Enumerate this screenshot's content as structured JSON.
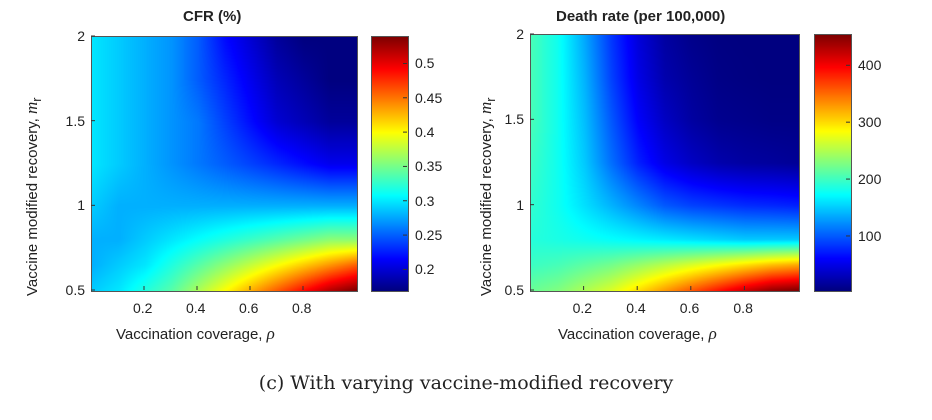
{
  "caption": "(c) With varying vaccine-modified recovery",
  "chart_data": [
    {
      "type": "heatmap",
      "title": "CFR (%)",
      "xlabel": "Vaccination coverage,",
      "xlabel_symbol": "ρ",
      "ylabel": "Vaccine modified recovery,",
      "ylabel_symbol": "m",
      "ylabel_subscript": "r",
      "xlim": [
        0,
        1
      ],
      "ylim": [
        0.5,
        2
      ],
      "xticks": [
        "0.2",
        "0.4",
        "0.6",
        "0.8"
      ],
      "xtick_values": [
        0.2,
        0.4,
        0.6,
        0.8
      ],
      "yticks": [
        "0.5",
        "1",
        "1.5",
        "2"
      ],
      "ytick_values": [
        0.5,
        1,
        1.5,
        2
      ],
      "colorbar_range": [
        0.17,
        0.54
      ],
      "colorbar_ticks": [
        "0.2",
        "0.25",
        "0.3",
        "0.35",
        "0.4",
        "0.45",
        "0.5"
      ],
      "colorbar_tick_values": [
        0.2,
        0.25,
        0.3,
        0.35,
        0.4,
        0.45,
        0.5
      ],
      "colormap": "jet",
      "x": [
        0.0,
        0.1,
        0.2,
        0.3,
        0.4,
        0.5,
        0.6,
        0.7,
        0.8,
        0.9,
        1.0
      ],
      "y": [
        0.5,
        0.65,
        0.8,
        1.0,
        1.25,
        1.5,
        1.75,
        2.0
      ],
      "z": [
        [
          0.29,
          0.3,
          0.32,
          0.34,
          0.37,
          0.4,
          0.43,
          0.46,
          0.49,
          0.52,
          0.54
        ],
        [
          0.28,
          0.29,
          0.3,
          0.32,
          0.34,
          0.36,
          0.38,
          0.4,
          0.42,
          0.44,
          0.46
        ],
        [
          0.28,
          0.28,
          0.29,
          0.3,
          0.31,
          0.32,
          0.33,
          0.34,
          0.35,
          0.36,
          0.36
        ],
        [
          0.29,
          0.28,
          0.28,
          0.28,
          0.28,
          0.28,
          0.28,
          0.28,
          0.28,
          0.28,
          0.28
        ],
        [
          0.3,
          0.29,
          0.28,
          0.27,
          0.26,
          0.25,
          0.24,
          0.23,
          0.22,
          0.21,
          0.21
        ],
        [
          0.3,
          0.29,
          0.28,
          0.27,
          0.26,
          0.24,
          0.22,
          0.2,
          0.19,
          0.18,
          0.18
        ],
        [
          0.3,
          0.29,
          0.28,
          0.27,
          0.25,
          0.23,
          0.21,
          0.19,
          0.18,
          0.17,
          0.17
        ],
        [
          0.3,
          0.29,
          0.28,
          0.27,
          0.25,
          0.22,
          0.2,
          0.18,
          0.17,
          0.17,
          0.17
        ]
      ]
    },
    {
      "type": "heatmap",
      "title": "Death rate (per 100,000)",
      "xlabel": "Vaccination coverage,",
      "xlabel_symbol": "ρ",
      "ylabel": "Vaccine modified recovery,",
      "ylabel_symbol": "m",
      "ylabel_subscript": "r",
      "xlim": [
        0,
        1
      ],
      "ylim": [
        0.5,
        2
      ],
      "xticks": [
        "0.2",
        "0.4",
        "0.6",
        "0.8"
      ],
      "xtick_values": [
        0.2,
        0.4,
        0.6,
        0.8
      ],
      "yticks": [
        "0.5",
        "1",
        "1.5",
        "2"
      ],
      "ytick_values": [
        0.5,
        1,
        1.5,
        2
      ],
      "colorbar_range": [
        5,
        455
      ],
      "colorbar_ticks": [
        "100",
        "200",
        "300",
        "400"
      ],
      "colorbar_tick_values": [
        100,
        200,
        300,
        400
      ],
      "colormap": "jet",
      "x": [
        0.0,
        0.1,
        0.2,
        0.3,
        0.4,
        0.5,
        0.6,
        0.7,
        0.8,
        0.9,
        1.0
      ],
      "y": [
        0.5,
        0.65,
        0.8,
        1.0,
        1.25,
        1.5,
        1.75,
        2.0
      ],
      "z": [
        [
          220,
          230,
          250,
          270,
          300,
          330,
          360,
          390,
          420,
          445,
          455
        ],
        [
          200,
          205,
          215,
          225,
          240,
          255,
          270,
          285,
          300,
          315,
          325
        ],
        [
          190,
          185,
          180,
          175,
          170,
          165,
          160,
          155,
          150,
          150,
          150
        ],
        [
          195,
          180,
          160,
          140,
          120,
          100,
          90,
          85,
          80,
          78,
          75
        ],
        [
          200,
          180,
          150,
          110,
          75,
          50,
          35,
          25,
          20,
          18,
          15
        ],
        [
          205,
          180,
          145,
          100,
          60,
          35,
          20,
          12,
          10,
          8,
          8
        ],
        [
          205,
          180,
          140,
          90,
          50,
          25,
          15,
          8,
          6,
          5,
          5
        ],
        [
          205,
          180,
          135,
          85,
          45,
          20,
          10,
          6,
          5,
          5,
          5
        ]
      ]
    }
  ]
}
